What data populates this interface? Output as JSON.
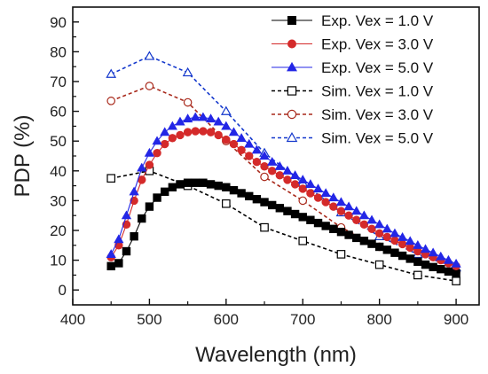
{
  "chart_data": {
    "type": "line",
    "xlabel": "Wavelength (nm)",
    "ylabel": "PDP (%)",
    "xlim": [
      400,
      930
    ],
    "ylim": [
      -5,
      95
    ],
    "xticks": [
      400,
      500,
      600,
      700,
      800,
      900
    ],
    "yticks": [
      0,
      10,
      20,
      30,
      40,
      50,
      60,
      70,
      80,
      90
    ],
    "grid": false,
    "legend_position": "top-right",
    "series": [
      {
        "name": "Exp. Vex = 1.0 V",
        "color": "#000000",
        "marker": "square-filled",
        "line": "solid",
        "x": [
          450,
          460,
          470,
          480,
          490,
          500,
          510,
          520,
          530,
          540,
          550,
          560,
          570,
          580,
          590,
          600,
          610,
          620,
          630,
          640,
          650,
          660,
          670,
          680,
          690,
          700,
          710,
          720,
          730,
          740,
          750,
          760,
          770,
          780,
          790,
          800,
          810,
          820,
          830,
          840,
          850,
          860,
          870,
          880,
          890,
          900
        ],
        "y": [
          8,
          9,
          13,
          18,
          24,
          28,
          31,
          33,
          34.5,
          35.5,
          36,
          36,
          36,
          35.5,
          35,
          34.5,
          33.5,
          32.5,
          31.5,
          30.5,
          29.5,
          28.5,
          27.5,
          26.5,
          25.5,
          24.5,
          23.5,
          22.5,
          21.5,
          20.5,
          19.5,
          18.5,
          17.5,
          16.5,
          15.5,
          14.5,
          13.5,
          12.5,
          11.5,
          10.5,
          9.5,
          8.5,
          7.7,
          7,
          6.2,
          5.5
        ]
      },
      {
        "name": "Exp. Vex = 3.0 V",
        "color": "#d42a2a",
        "marker": "circle-filled",
        "line": "solid",
        "x": [
          450,
          460,
          470,
          480,
          490,
          500,
          510,
          520,
          530,
          540,
          550,
          560,
          570,
          580,
          590,
          600,
          610,
          620,
          630,
          640,
          650,
          660,
          670,
          680,
          690,
          700,
          710,
          720,
          730,
          740,
          750,
          760,
          770,
          780,
          790,
          800,
          810,
          820,
          830,
          840,
          850,
          860,
          870,
          880,
          890,
          900
        ],
        "y": [
          11,
          15,
          22,
          30,
          37,
          42,
          46,
          49,
          51,
          52,
          53,
          53.3,
          53.3,
          53,
          52,
          50.5,
          49,
          47,
          45,
          43,
          41.5,
          40,
          38.5,
          37,
          35.5,
          34,
          32.5,
          31,
          29.5,
          28,
          26.5,
          25,
          23.5,
          22,
          20.5,
          19,
          17.8,
          16.6,
          15.4,
          14.2,
          13,
          12,
          11,
          10,
          9,
          8
        ]
      },
      {
        "name": "Exp. Vex = 5.0 V",
        "color": "#2326e6",
        "marker": "triangle-filled",
        "line": "solid",
        "x": [
          450,
          460,
          470,
          480,
          490,
          500,
          510,
          520,
          530,
          540,
          550,
          560,
          570,
          580,
          590,
          600,
          610,
          620,
          630,
          640,
          650,
          660,
          670,
          680,
          690,
          700,
          710,
          720,
          730,
          740,
          750,
          760,
          770,
          780,
          790,
          800,
          810,
          820,
          830,
          840,
          850,
          860,
          870,
          880,
          890,
          900
        ],
        "y": [
          12,
          17,
          25,
          33,
          41,
          46,
          50,
          53,
          55,
          56.5,
          57.5,
          58,
          58,
          57.5,
          56.5,
          55,
          53,
          51,
          49,
          47,
          45,
          43,
          41.5,
          40,
          38.5,
          37,
          35.5,
          34,
          32.5,
          31,
          29.5,
          28,
          26.5,
          25,
          23.5,
          22,
          20.5,
          19,
          17.7,
          16.4,
          15,
          13.7,
          12.5,
          11.2,
          10,
          8.8
        ]
      },
      {
        "name": "Sim. Vex = 1.0 V",
        "color": "#000000",
        "marker": "square-open",
        "line": "dashed",
        "x": [
          450,
          500,
          550,
          600,
          650,
          700,
          750,
          800,
          850,
          900
        ],
        "y": [
          37.5,
          40,
          35,
          29,
          21,
          16.5,
          12,
          8.5,
          5,
          3
        ]
      },
      {
        "name": "Sim. Vex = 3.0 V",
        "color": "#a8281a",
        "marker": "circle-open",
        "line": "dashed",
        "x": [
          450,
          500,
          550,
          600,
          650,
          700,
          750,
          800,
          850,
          900
        ],
        "y": [
          63.5,
          68.5,
          63,
          50,
          38,
          30,
          21,
          14.5,
          10,
          6
        ]
      },
      {
        "name": "Sim. Vex = 5.0 V",
        "color": "#1438cc",
        "marker": "triangle-open",
        "line": "dashed",
        "x": [
          450,
          500,
          550,
          600,
          650,
          700,
          750,
          800,
          850,
          900
        ],
        "y": [
          72.5,
          78.5,
          73,
          60,
          46,
          36,
          26,
          18,
          12,
          7.5
        ]
      }
    ]
  }
}
